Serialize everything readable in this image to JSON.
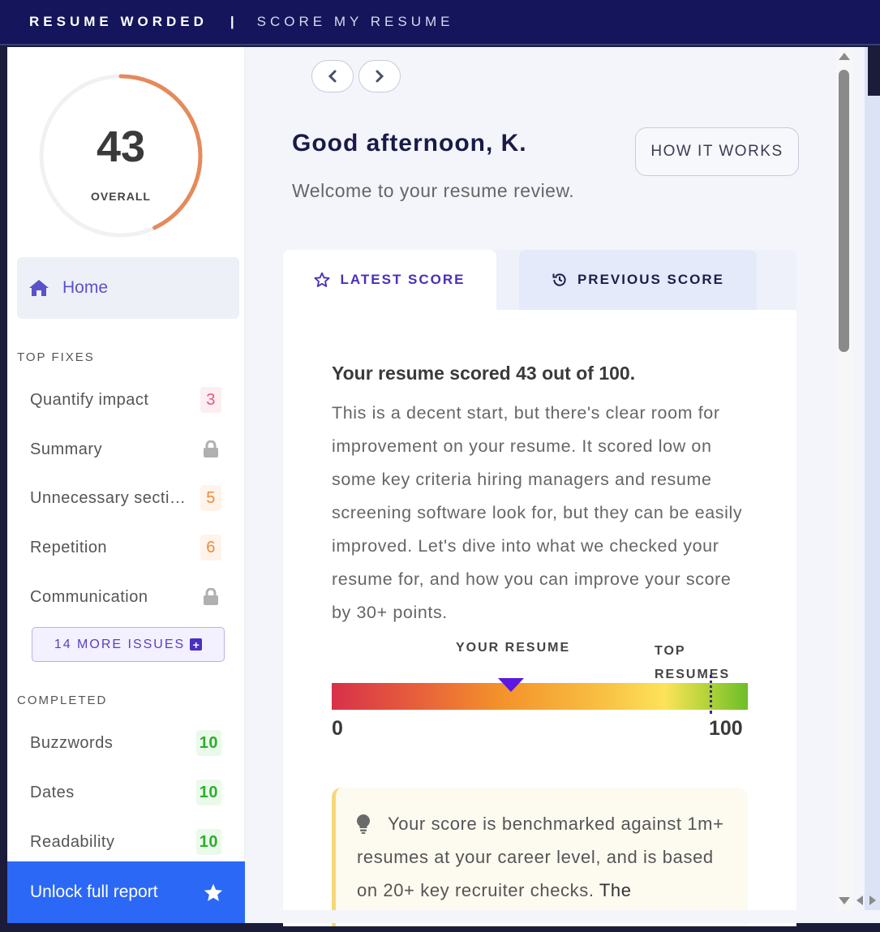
{
  "topbar": {
    "brand": "RESUME WORDED",
    "separator": "|",
    "section": "SCORE MY RESUME"
  },
  "sidebar": {
    "score": {
      "value": "43",
      "label": "OVERALL",
      "fraction": 0.43,
      "ring_color": "#e58a5b"
    },
    "home_label": "Home",
    "top_fixes_title": "TOP FIXES",
    "top_fixes": [
      {
        "label": "Quantify impact",
        "badge": "3",
        "kind": "red"
      },
      {
        "label": "Summary",
        "badge": "",
        "kind": "lock"
      },
      {
        "label": "Unnecessary sections",
        "badge": "5",
        "kind": "orange"
      },
      {
        "label": "Repetition",
        "badge": "6",
        "kind": "orange"
      },
      {
        "label": "Communication",
        "badge": "",
        "kind": "lock"
      }
    ],
    "more_issues_label": "14 MORE ISSUES",
    "completed_title": "COMPLETED",
    "completed": [
      {
        "label": "Buzzwords",
        "badge": "10"
      },
      {
        "label": "Dates",
        "badge": "10"
      },
      {
        "label": "Readability",
        "badge": "10"
      }
    ],
    "unlock_label": "Unlock full report"
  },
  "main": {
    "greeting": "Good afternoon, K.",
    "welcome": "Welcome to your resume review.",
    "how_it_works": "HOW IT WORKS",
    "tabs": [
      {
        "label": "LATEST SCORE",
        "active": true
      },
      {
        "label": "PREVIOUS SCORE",
        "active": false
      }
    ],
    "result_title": "Your resume scored 43 out of 100.",
    "result_body": "This is a decent start, but there's clear room for improvement on your resume. It scored low on some key criteria hiring managers and resume screening software look for, but they can be easily improved. Let's dive into what we checked your resume for, and how you can improve your score by 30+ points.",
    "gauge": {
      "your_resume_label": "YOUR RESUME",
      "top_resumes_label_1": "TOP",
      "top_resumes_label_2": "RESUMES",
      "min": "0",
      "max": "100",
      "your_value": 43,
      "top_value": 91
    },
    "tip_text_a": "Your score is benchmarked against 1m+ resumes at your career level, and is based on 20+ key recruiter checks.",
    "tip_text_b": "The"
  }
}
